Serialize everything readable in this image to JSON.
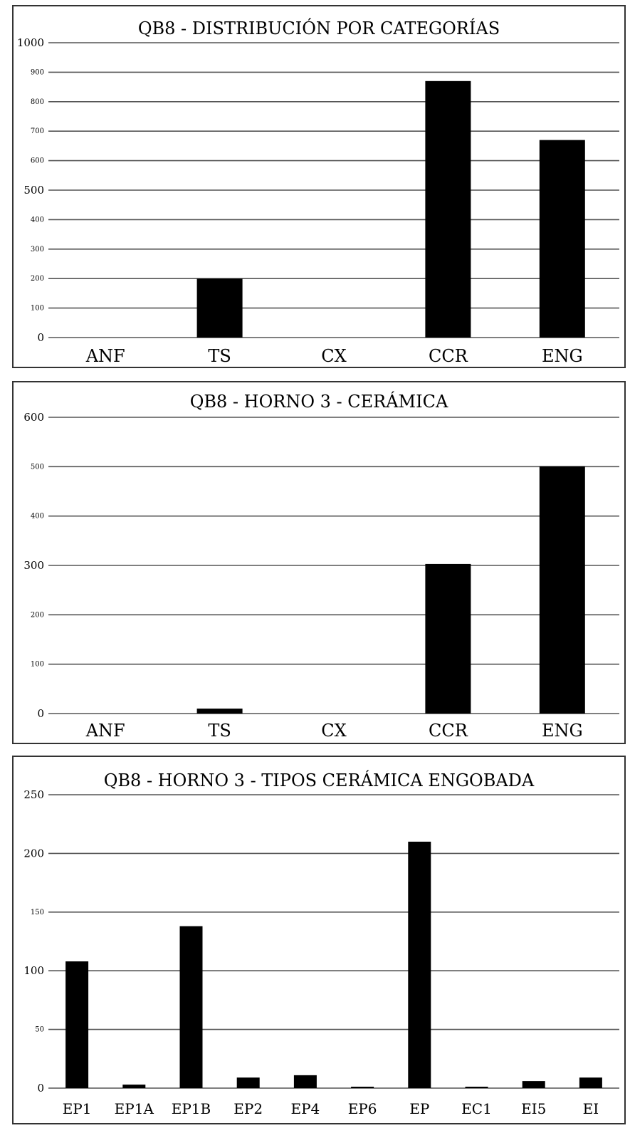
{
  "chart_data": [
    {
      "type": "bar",
      "title": "QB8 - DISTRIBUCIÓN POR CATEGORÍAS",
      "categories": [
        "ANF",
        "TS",
        "CX",
        "CCR",
        "ENG"
      ],
      "values": [
        0,
        200,
        0,
        870,
        670
      ],
      "ylim": [
        0,
        1000
      ],
      "yticks": [
        0,
        100,
        200,
        300,
        400,
        500,
        600,
        700,
        800,
        900,
        1000
      ],
      "ytick_labels": [
        "0",
        "100",
        "200",
        "300",
        "400",
        "500",
        "600",
        "700",
        "800",
        "900",
        "1000"
      ],
      "xlabel": "",
      "ylabel": "",
      "grid": true
    },
    {
      "type": "bar",
      "title": "QB8 - HORNO 3 - CERÁMICA",
      "categories": [
        "ANF",
        "TS",
        "CX",
        "CCR",
        "ENG"
      ],
      "values": [
        0,
        10,
        0,
        303,
        501
      ],
      "ylim": [
        0,
        600
      ],
      "yticks": [
        0,
        100,
        200,
        300,
        400,
        500,
        600
      ],
      "ytick_labels": [
        "0",
        "100",
        "200",
        "300",
        "400",
        "500",
        "600"
      ],
      "xlabel": "",
      "ylabel": "",
      "grid": true
    },
    {
      "type": "bar",
      "title": "QB8 - HORNO 3 - TIPOS CERÁMICA ENGOBADA",
      "categories": [
        "EP1",
        "EP1A",
        "EP1B",
        "EP2",
        "EP4",
        "EP6",
        "EP",
        "EC1",
        "EI5",
        "EI"
      ],
      "values": [
        108,
        3,
        138,
        9,
        11,
        1,
        210,
        1,
        6,
        9
      ],
      "ylim": [
        0,
        250
      ],
      "yticks": [
        0,
        50,
        100,
        150,
        200,
        250
      ],
      "ytick_labels": [
        "0",
        "50",
        "100",
        "150",
        "200",
        "250"
      ],
      "xlabel": "",
      "ylabel": "",
      "grid": true
    }
  ]
}
